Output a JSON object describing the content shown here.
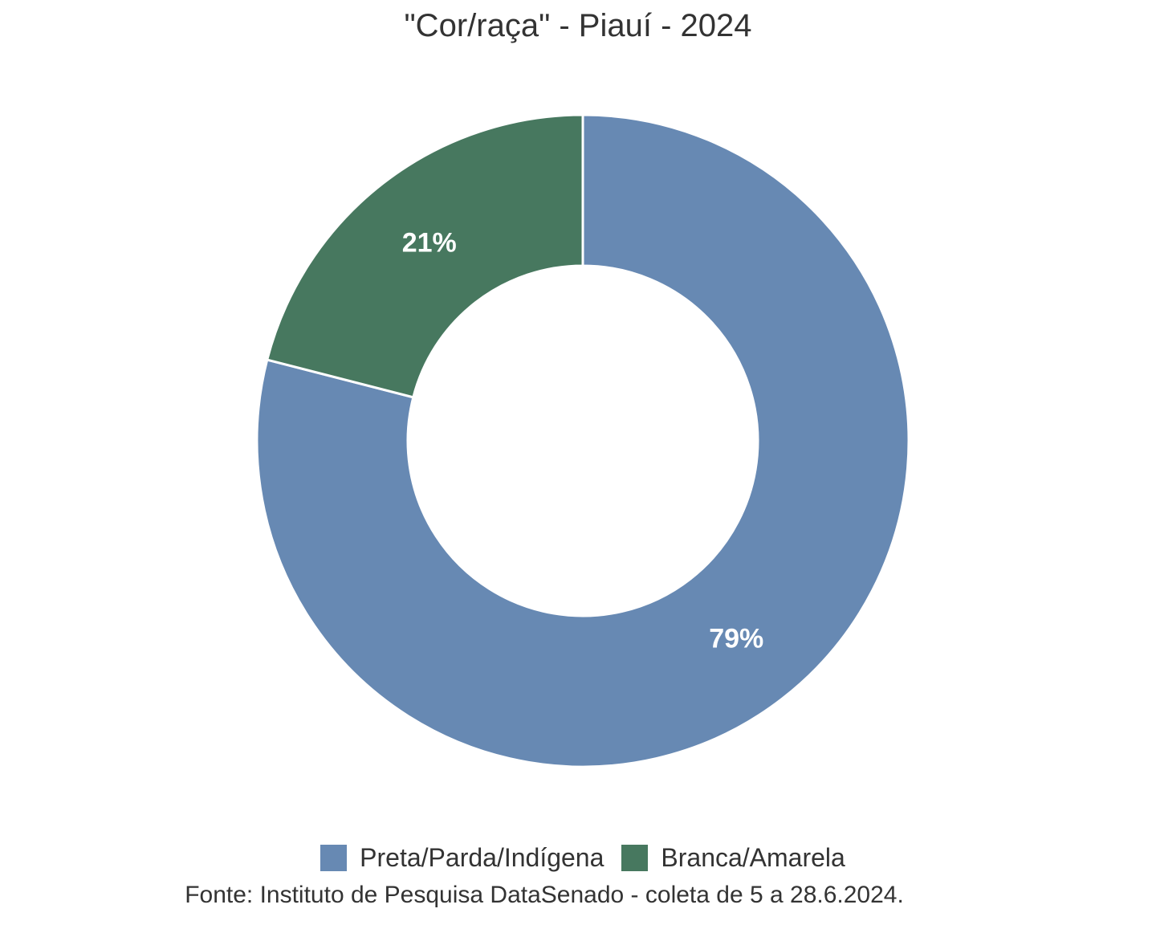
{
  "title": "\"Cor/raça\" - Piauí - 2024",
  "footer": "Fonte: Instituto de Pesquisa DataSenado - coleta de 5 a 28.6.2024.",
  "chart_data": {
    "type": "pie",
    "subtype": "donut",
    "title": "\"Cor/raça\" - Piauí - 2024",
    "categories": [
      "Preta/Parda/Indígena",
      "Branca/Amarela"
    ],
    "values": [
      79,
      21
    ],
    "slice_labels": [
      "79%",
      "21%"
    ],
    "colors": [
      "#6789b3",
      "#47785f"
    ],
    "start_angle_deg": 0,
    "direction": "clockwise",
    "donut_hole_ratio": 0.537,
    "divider_color": "#ffffff",
    "slice_label_color": "#ffffff",
    "legend_position": "bottom",
    "background_color": "#ffffff",
    "text_color": "#333333"
  }
}
